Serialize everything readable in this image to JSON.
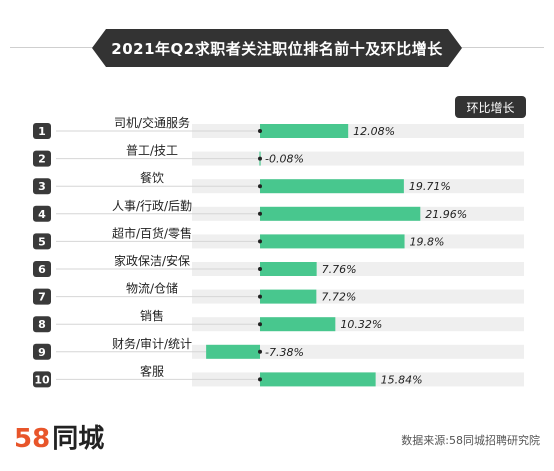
{
  "title": "2021年Q2求职者关注职位排名前十及环比增长",
  "legend_label": "环比增长",
  "colors": {
    "bar": "#48c78e",
    "track": "#efefef",
    "badge": "#333333",
    "logo": "#e8552a"
  },
  "chart_data": {
    "type": "bar",
    "orientation": "horizontal",
    "ranks": [
      "1",
      "2",
      "3",
      "4",
      "5",
      "6",
      "7",
      "8",
      "9",
      "10"
    ],
    "categories": [
      "司机/交通服务",
      "普工/技工",
      "餐饮",
      "人事/行政/后勤",
      "超市/百货/零售",
      "家政保洁/安保",
      "物流/仓储",
      "销售",
      "财务/审计/统计",
      "客服"
    ],
    "values": [
      12.08,
      -0.08,
      19.71,
      21.96,
      19.8,
      7.76,
      7.72,
      10.32,
      -7.38,
      15.84
    ],
    "value_labels": [
      "12.08%",
      "-0.08%",
      "19.71%",
      "21.96%",
      "19.8%",
      "7.76%",
      "7.72%",
      "10.32%",
      "-7.38%",
      "15.84%"
    ],
    "xlim": [
      -9.5,
      38
    ],
    "unit": "%"
  },
  "footer": {
    "logo_number": "58",
    "logo_name": "同城",
    "source": "数据来源:58同城招聘研究院"
  }
}
